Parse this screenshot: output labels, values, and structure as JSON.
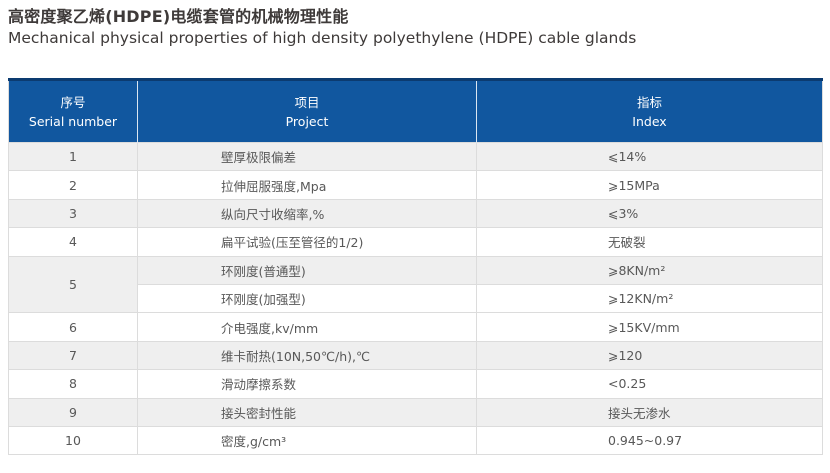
{
  "page": {
    "title_zh": "高密度聚乙烯(HDPE)电缆套管的机械物理性能",
    "title_en": "Mechanical physical properties of high density polyethylene (HDPE) cable glands"
  },
  "table": {
    "header": {
      "serial_zh": "序号",
      "serial_en": "Serial number",
      "project_zh": "项目",
      "project_en": "Project",
      "index_zh": "指标",
      "index_en": "Index"
    },
    "rows": [
      {
        "no": "1",
        "project": "壁厚极限偏差",
        "index": "⩽14%"
      },
      {
        "no": "2",
        "project": "拉伸屈服强度,Mpa",
        "index": "⩾15MPa"
      },
      {
        "no": "3",
        "project": "纵向尺寸收缩率,%",
        "index": "⩽3%"
      },
      {
        "no": "4",
        "project": "扁平试验(压至管径的1/2)",
        "index": "无破裂"
      },
      {
        "no": "5",
        "project": "环刚度(普通型)",
        "index": "⩾8KN/m²",
        "project2": "环刚度(加强型)",
        "index2": "⩾12KN/m²"
      },
      {
        "no": "6",
        "project": "介电强度,kv/mm",
        "index": "⩾15KV/mm"
      },
      {
        "no": "7",
        "project": "维卡耐热(10N,50℃/h),℃",
        "index": "⩾120"
      },
      {
        "no": "8",
        "project": "滑动摩擦系数",
        "index": "<0.25"
      },
      {
        "no": "9",
        "project": "接头密封性能",
        "index": "接头无渗水"
      },
      {
        "no": "10",
        "project": "密度,g/cm³",
        "index": "0.945~0.97"
      }
    ],
    "colors": {
      "header_bg": "#11579f",
      "header_top_line": "#0c3b70",
      "header_text": "#ffffff",
      "stripe_bg": "#efefef",
      "row_bg": "#ffffff",
      "border": "#dcdcdc",
      "body_text": "#585858",
      "title_text": "#3e3a39"
    }
  }
}
